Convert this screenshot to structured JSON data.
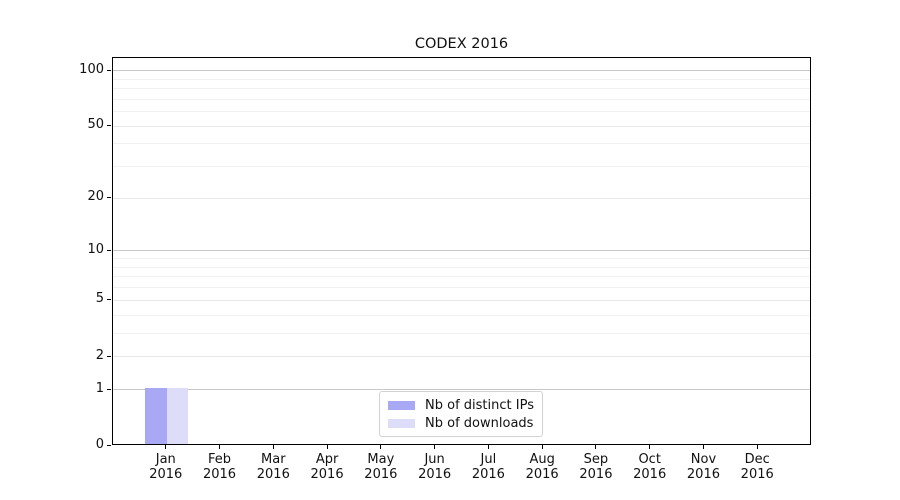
{
  "chart_data": {
    "type": "bar",
    "title": "CODEX 2016",
    "categories": [
      "Jan",
      "Feb",
      "Mar",
      "Apr",
      "May",
      "Jun",
      "Jul",
      "Aug",
      "Sep",
      "Oct",
      "Nov",
      "Dec"
    ],
    "category_year": "2016",
    "series": [
      {
        "name": "Nb of distinct IPs",
        "color": "#a8a8f4",
        "values": [
          1,
          0,
          0,
          0,
          0,
          0,
          0,
          0,
          0,
          0,
          0,
          0
        ]
      },
      {
        "name": "Nb of downloads",
        "color": "#ddddf9",
        "values": [
          1,
          0,
          0,
          0,
          0,
          0,
          0,
          0,
          0,
          0,
          0,
          0
        ]
      }
    ],
    "yscale": "log1p",
    "ylim": [
      0,
      117
    ],
    "yticks": [
      100,
      50,
      20,
      10,
      5,
      2,
      1,
      0
    ],
    "gridlines": {
      "major": [
        1,
        10,
        100
      ],
      "mid": [
        2,
        5,
        20,
        50
      ],
      "minor": [
        3,
        4,
        6,
        7,
        8,
        9,
        30,
        40,
        60,
        70,
        80,
        90
      ]
    },
    "grid_colors": {
      "major": "#c8c8c8",
      "mid": "#e8e8e8",
      "minor": "#f1f1f1"
    },
    "legend_position": "lower center"
  }
}
